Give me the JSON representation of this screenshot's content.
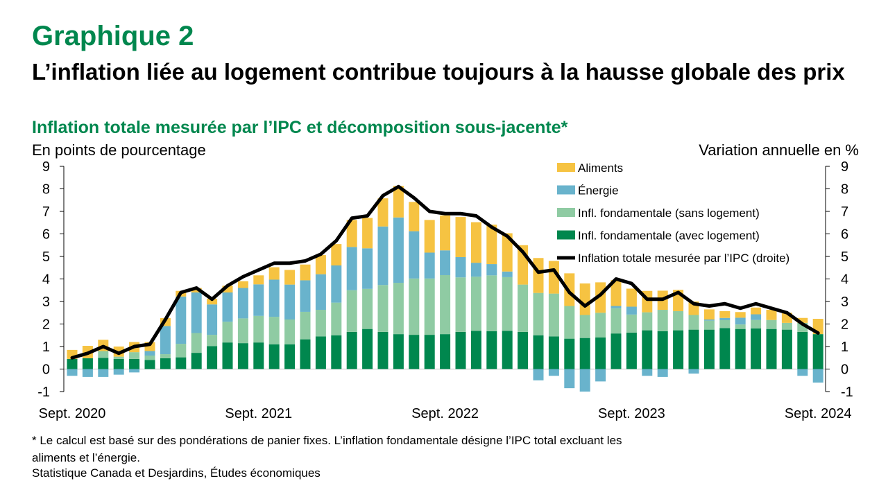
{
  "title": "Graphique 2",
  "headline": "L’inflation liée au logement contribue toujours à la hausse globale des prix",
  "subtitle": "Inflation totale mesurée par l’IPC et décomposition sous-jacente*",
  "left_axis_label": "En points de pourcentage",
  "right_axis_label": "Variation annuelle en %",
  "note": "* Le calcul est basé sur des pondérations de panier fixes. L’inflation fondamentale désigne l’IPC total excluant les aliments et l’énergie.",
  "source": "Statistique Canada et Desjardins, Études économiques",
  "colors": {
    "food": "#F6C342",
    "energy": "#69B3CC",
    "core_ex": "#8FCBA3",
    "core_housing": "#00874E",
    "line": "#000000"
  },
  "chart_data": {
    "type": "bar",
    "stacked": true,
    "x": [
      "2020-09",
      "2020-10",
      "2020-11",
      "2020-12",
      "2021-01",
      "2021-02",
      "2021-03",
      "2021-04",
      "2021-05",
      "2021-06",
      "2021-07",
      "2021-08",
      "2021-09",
      "2021-10",
      "2021-11",
      "2021-12",
      "2022-01",
      "2022-02",
      "2022-03",
      "2022-04",
      "2022-05",
      "2022-06",
      "2022-07",
      "2022-08",
      "2022-09",
      "2022-10",
      "2022-11",
      "2022-12",
      "2023-01",
      "2023-02",
      "2023-03",
      "2023-04",
      "2023-05",
      "2023-06",
      "2023-07",
      "2023-08",
      "2023-09",
      "2023-10",
      "2023-11",
      "2023-12",
      "2024-01",
      "2024-02",
      "2024-03",
      "2024-04",
      "2024-05",
      "2024-06",
      "2024-07",
      "2024-08",
      "2024-09"
    ],
    "x_tick_labels": [
      "Sept. 2020",
      "Sept. 2021",
      "Sept. 2022",
      "Sept. 2023",
      "Sept. 2024"
    ],
    "x_tick_indices": [
      0,
      12,
      24,
      36,
      48
    ],
    "ylim_left": [
      -1,
      9
    ],
    "ylim_right": [
      -1,
      9
    ],
    "y_ticks": [
      -1,
      0,
      1,
      2,
      3,
      4,
      5,
      6,
      7,
      8,
      9
    ],
    "legend_position": "top-right",
    "series": [
      {
        "name": "Infl. fondamentale (avec logement)",
        "key": "core_housing",
        "type": "bar",
        "values": [
          0.45,
          0.48,
          0.5,
          0.45,
          0.45,
          0.4,
          0.48,
          0.52,
          0.72,
          1.02,
          1.18,
          1.15,
          1.18,
          1.1,
          1.1,
          1.32,
          1.45,
          1.5,
          1.65,
          1.78,
          1.65,
          1.55,
          1.52,
          1.52,
          1.55,
          1.65,
          1.7,
          1.68,
          1.7,
          1.65,
          1.5,
          1.45,
          1.35,
          1.38,
          1.4,
          1.58,
          1.62,
          1.72,
          1.68,
          1.72,
          1.75,
          1.75,
          1.82,
          1.78,
          1.8,
          1.78,
          1.75,
          1.65,
          1.55
        ]
      },
      {
        "name": "Infl. fondamentale (sans logement)",
        "key": "core_ex",
        "type": "bar",
        "values": [
          0.0,
          0.0,
          0.3,
          0.1,
          0.3,
          0.2,
          0.18,
          0.6,
          0.88,
          0.5,
          0.92,
          1.1,
          1.18,
          1.22,
          1.1,
          1.22,
          1.18,
          1.45,
          1.85,
          1.78,
          2.08,
          2.28,
          2.5,
          2.5,
          2.62,
          2.42,
          2.4,
          2.48,
          2.38,
          2.1,
          1.88,
          1.9,
          1.45,
          1.02,
          1.1,
          1.12,
          0.8,
          0.8,
          0.95,
          0.85,
          0.65,
          0.4,
          0.35,
          0.2,
          0.38,
          0.4,
          0.3,
          0.4,
          0.0
        ]
      },
      {
        "name": "Énergie",
        "key": "energy",
        "type": "bar",
        "values": [
          -0.3,
          -0.35,
          -0.35,
          -0.25,
          -0.15,
          0.2,
          1.25,
          2.1,
          1.8,
          1.35,
          1.3,
          1.35,
          1.4,
          1.65,
          1.55,
          1.4,
          1.58,
          1.65,
          1.92,
          1.8,
          2.6,
          2.9,
          2.1,
          1.15,
          1.1,
          0.9,
          0.62,
          0.5,
          0.25,
          0.0,
          -0.5,
          -0.3,
          -0.85,
          -1.0,
          -0.55,
          0.1,
          0.35,
          -0.3,
          -0.35,
          0.0,
          -0.2,
          0.05,
          0.1,
          0.3,
          0.25,
          0.0,
          0.0,
          -0.3,
          -0.6
        ]
      },
      {
        "name": "Aliments",
        "key": "food",
        "type": "bar",
        "values": [
          0.4,
          0.55,
          0.5,
          0.45,
          0.45,
          0.4,
          0.35,
          0.25,
          0.2,
          0.25,
          0.3,
          0.3,
          0.4,
          0.55,
          0.65,
          0.7,
          0.85,
          0.95,
          1.2,
          1.35,
          1.25,
          1.4,
          1.3,
          1.45,
          1.55,
          1.78,
          1.8,
          1.75,
          1.7,
          1.75,
          1.55,
          1.45,
          1.45,
          1.4,
          1.35,
          1.15,
          0.8,
          0.95,
          0.85,
          0.95,
          0.6,
          0.45,
          0.3,
          0.25,
          0.3,
          0.45,
          0.45,
          0.22,
          0.68
        ]
      },
      {
        "name": "Inflation totale mesurée par l’IPC (droite)",
        "key": "line",
        "type": "line",
        "values": [
          0.5,
          0.7,
          1.0,
          0.7,
          1.0,
          1.1,
          2.2,
          3.4,
          3.6,
          3.1,
          3.7,
          4.1,
          4.4,
          4.7,
          4.7,
          4.8,
          5.1,
          5.7,
          6.7,
          6.8,
          7.7,
          8.1,
          7.6,
          7.0,
          6.9,
          6.9,
          6.8,
          6.3,
          5.9,
          5.2,
          4.3,
          4.4,
          3.4,
          2.8,
          3.3,
          4.0,
          3.8,
          3.1,
          3.1,
          3.4,
          2.9,
          2.8,
          2.9,
          2.7,
          2.9,
          2.7,
          2.5,
          2.0,
          1.6
        ]
      }
    ]
  }
}
